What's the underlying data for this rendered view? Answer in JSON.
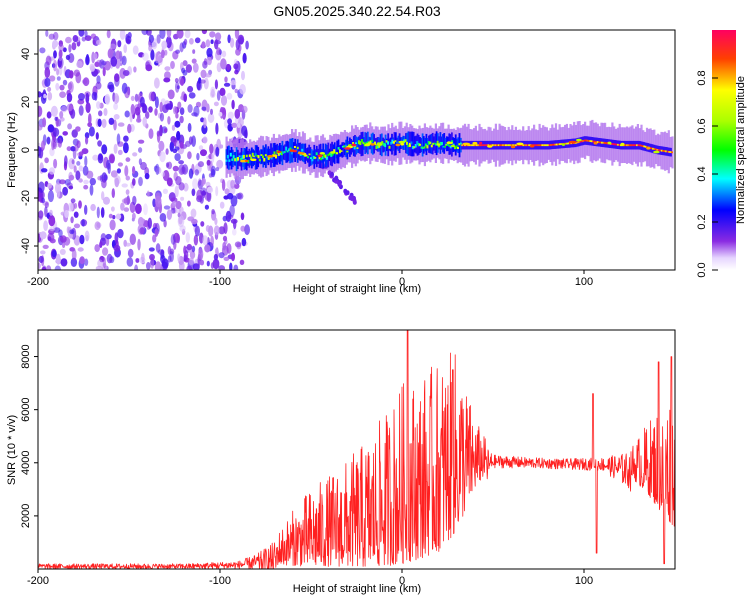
{
  "figure": {
    "title": "GN05.2025.340.22.54.R03"
  },
  "chart_data": [
    {
      "type": "heatmap",
      "title": "GN05.2025.340.22.54.R03",
      "xlabel": "Height of straight line (km)",
      "ylabel": "Frequency (Hz)",
      "xlim": [
        -200,
        150
      ],
      "ylim": [
        -50,
        50
      ],
      "xticks": [
        -200,
        -100,
        0,
        100
      ],
      "yticks": [
        -40,
        -20,
        0,
        20,
        40
      ],
      "xtick_labels": [
        "-200",
        "-100",
        "0",
        "100"
      ],
      "ytick_labels": [
        "-40",
        "-20",
        "0",
        "20",
        "40"
      ],
      "colorbar": {
        "label": "Normalized spectral amplitude",
        "range": [
          0.0,
          1.0
        ],
        "ticks": [
          0.0,
          0.2,
          0.4,
          0.6,
          0.8
        ],
        "tick_labels": [
          "0.0",
          "0.2",
          "0.4",
          "0.6",
          "0.8"
        ]
      },
      "regions": [
        {
          "name": "noise",
          "x": [
            -200,
            -85
          ],
          "freq": [
            -50,
            50
          ],
          "amplitude": [
            0.05,
            0.2
          ]
        },
        {
          "name": "signal-band",
          "x": [
            -97,
            148
          ],
          "freq_center": 2,
          "freq_halfwidth": 4,
          "amplitude": [
            0.3,
            1.0
          ]
        },
        {
          "name": "steady-segment",
          "x": [
            32,
            148
          ],
          "freq_center": 2,
          "amplitude": [
            0.7,
            1.0
          ]
        },
        {
          "name": "descending-tail",
          "x": [
            -45,
            -25
          ],
          "freq": [
            -5,
            -22
          ],
          "amplitude": [
            0.1,
            0.2
          ]
        }
      ],
      "trace": [
        {
          "x": -97,
          "f": -3
        },
        {
          "x": -90,
          "f": -4
        },
        {
          "x": -80,
          "f": -3
        },
        {
          "x": -70,
          "f": -2
        },
        {
          "x": -60,
          "f": 0
        },
        {
          "x": -55,
          "f": -1
        },
        {
          "x": -50,
          "f": -3
        },
        {
          "x": -40,
          "f": -2
        },
        {
          "x": -30,
          "f": 1
        },
        {
          "x": -20,
          "f": 3
        },
        {
          "x": -10,
          "f": 2
        },
        {
          "x": 0,
          "f": 3
        },
        {
          "x": 10,
          "f": 2
        },
        {
          "x": 20,
          "f": 3
        },
        {
          "x": 30,
          "f": 2
        },
        {
          "x": 40,
          "f": 2
        },
        {
          "x": 60,
          "f": 2
        },
        {
          "x": 80,
          "f": 2
        },
        {
          "x": 95,
          "f": 3
        },
        {
          "x": 100,
          "f": 4
        },
        {
          "x": 110,
          "f": 3
        },
        {
          "x": 120,
          "f": 2
        },
        {
          "x": 130,
          "f": 2
        },
        {
          "x": 140,
          "f": 0
        },
        {
          "x": 148,
          "f": -1
        }
      ]
    },
    {
      "type": "line",
      "xlabel": "Height of straight line (km)",
      "ylabel": "SNR (10 * v/v)",
      "xlim": [
        -200,
        150
      ],
      "ylim": [
        0,
        9000
      ],
      "xticks": [
        -200,
        -100,
        0,
        100
      ],
      "yticks": [
        2000,
        4000,
        6000,
        8000
      ],
      "xtick_labels": [
        "-200",
        "-100",
        "0",
        "100"
      ],
      "ytick_labels": [
        "2000",
        "4000",
        "6000",
        "8000"
      ],
      "series": [
        {
          "name": "SNR",
          "color": "#ff2020",
          "envelope": [
            {
              "x": -200,
              "base": 100,
              "amp": 100
            },
            {
              "x": -120,
              "base": 100,
              "amp": 100
            },
            {
              "x": -90,
              "base": 150,
              "amp": 150
            },
            {
              "x": -80,
              "base": 250,
              "amp": 300
            },
            {
              "x": -70,
              "base": 350,
              "amp": 700
            },
            {
              "x": -60,
              "base": 500,
              "amp": 1400
            },
            {
              "x": -50,
              "base": 600,
              "amp": 2000
            },
            {
              "x": -40,
              "base": 700,
              "amp": 2300
            },
            {
              "x": -30,
              "base": 800,
              "amp": 2700
            },
            {
              "x": -20,
              "base": 900,
              "amp": 3200
            },
            {
              "x": -10,
              "base": 1100,
              "amp": 3800
            },
            {
              "x": 0,
              "base": 1400,
              "amp": 4600
            },
            {
              "x": 10,
              "base": 1600,
              "amp": 4600
            },
            {
              "x": 20,
              "base": 1900,
              "amp": 4800
            },
            {
              "x": 30,
              "base": 2600,
              "amp": 4600
            },
            {
              "x": 40,
              "base": 3500,
              "amp": 1800
            },
            {
              "x": 50,
              "base": 4050,
              "amp": 250
            },
            {
              "x": 70,
              "base": 4000,
              "amp": 200
            },
            {
              "x": 90,
              "base": 3950,
              "amp": 200
            },
            {
              "x": 110,
              "base": 3950,
              "amp": 250
            },
            {
              "x": 125,
              "base": 3700,
              "amp": 700
            },
            {
              "x": 135,
              "base": 3300,
              "amp": 1800
            },
            {
              "x": 145,
              "base": 2700,
              "amp": 3200
            },
            {
              "x": 150,
              "base": 2500,
              "amp": 3500
            }
          ],
          "peaks": [
            {
              "x": 3,
              "y": 9000
            },
            {
              "x": 28,
              "y": 7500
            },
            {
              "x": 105,
              "y": 6600
            },
            {
              "x": 107,
              "y": 600
            },
            {
              "x": 141,
              "y": 7800
            },
            {
              "x": 144,
              "y": 200
            },
            {
              "x": 148,
              "y": 8000
            }
          ]
        }
      ]
    }
  ]
}
